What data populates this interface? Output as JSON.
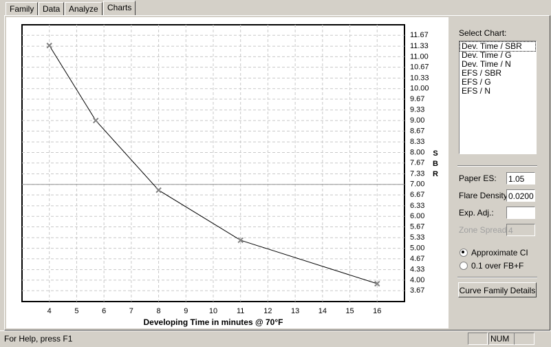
{
  "tabs": [
    "Family",
    "Data",
    "Analyze",
    "Charts"
  ],
  "active_tab": "Charts",
  "chart_data": {
    "type": "line",
    "x_label": "Developing Time in minutes @ 70°F",
    "y_label": "SBR",
    "x": [
      4,
      5.7,
      8,
      11,
      16
    ],
    "values": [
      11.35,
      9.0,
      6.82,
      5.25,
      3.89
    ],
    "color": "#000000",
    "marker_color": "#808080",
    "xlim": [
      3,
      17
    ],
    "xticks": [
      4,
      5,
      6,
      7,
      8,
      9,
      10,
      11,
      12,
      13,
      14,
      15,
      16
    ],
    "ylim": [
      3.33,
      12
    ],
    "yticks": [
      3.67,
      {
        "value": 4,
        "label": "4.00"
      },
      4.33,
      4.67,
      {
        "value": 5,
        "label": "5.00"
      },
      5.33,
      5.67,
      {
        "value": 6,
        "label": "6.00"
      },
      6.33,
      6.67,
      {
        "value": 7,
        "label": "7.00"
      },
      7.33,
      7.67,
      {
        "value": 8,
        "label": "8.00"
      },
      8.33,
      8.67,
      {
        "value": 9,
        "label": "9.00"
      },
      9.33,
      9.67,
      {
        "value": 10,
        "label": "10.00"
      },
      10.33,
      10.67,
      {
        "value": 11,
        "label": "11.00"
      },
      11.33,
      11.67
    ],
    "reference_line": 7,
    "grid": true
  },
  "panel": {
    "select_label": "Select Chart:",
    "charts": [
      "Dev. Time / SBR",
      "Dev. Time / G",
      "Dev. Time / N",
      "EFS / SBR",
      "EFS / G",
      "EFS / N"
    ],
    "fields": [
      {
        "label": "Paper ES:",
        "value": "1.05"
      },
      {
        "label": "Flare Density:",
        "value": "0.0200"
      },
      {
        "label": "Exp. Adj.:"
      },
      {
        "label": "Zone Spread:",
        "value": "4"
      }
    ],
    "radios": [
      "Approximate CI",
      "0.1 over FB+F"
    ],
    "button": "Curve Family Details"
  },
  "status": {
    "help": "For Help, press F1",
    "num": "NUM"
  }
}
